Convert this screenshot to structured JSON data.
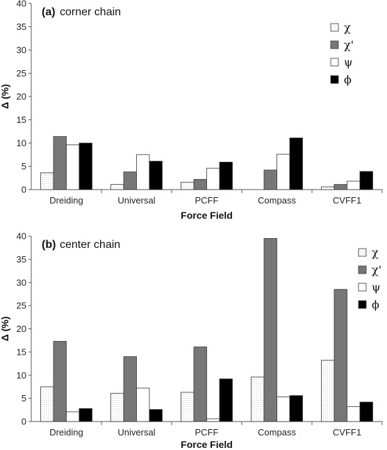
{
  "chart_data": [
    {
      "type": "bar",
      "panel_tag": "(a)",
      "title": "corner chain",
      "xlabel": "Force Field",
      "ylabel": "Δ (%)",
      "categories": [
        "Dreiding",
        "Universal",
        "PCFF",
        "Compass",
        "CVFF1"
      ],
      "ylim": [
        0,
        40
      ],
      "yticks": [
        0,
        5,
        10,
        15,
        20,
        25,
        30,
        35,
        40
      ],
      "grid": false,
      "legend_position": "top-right",
      "series": [
        {
          "name": "χ",
          "values": [
            3.6,
            1.1,
            1.6,
            0,
            0.6
          ],
          "fill": "#ffffff",
          "pattern": "dotted"
        },
        {
          "name": "χ'",
          "values": [
            11.4,
            3.8,
            2.2,
            4.2,
            1.1
          ],
          "fill": "#777777"
        },
        {
          "name": "ψ",
          "values": [
            9.6,
            7.5,
            4.6,
            7.6,
            1.8
          ],
          "fill": "#ffffff"
        },
        {
          "name": "ϕ",
          "values": [
            10.0,
            6.1,
            5.9,
            11.1,
            3.9
          ],
          "fill": "#000000"
        }
      ]
    },
    {
      "type": "bar",
      "panel_tag": "(b)",
      "title": "center chain",
      "xlabel": "Force Field",
      "ylabel": "Δ (%)",
      "categories": [
        "Dreiding",
        "Universal",
        "PCFF",
        "Compass",
        "CVFF1"
      ],
      "ylim": [
        0,
        40
      ],
      "yticks": [
        0,
        5,
        10,
        15,
        20,
        25,
        30,
        35,
        40
      ],
      "grid": false,
      "legend_position": "top-right",
      "series": [
        {
          "name": "χ",
          "values": [
            7.5,
            6.1,
            6.3,
            9.6,
            13.2
          ],
          "fill": "#ffffff",
          "pattern": "dotted"
        },
        {
          "name": "χ'",
          "values": [
            17.3,
            14.0,
            16.1,
            39.5,
            28.5
          ],
          "fill": "#777777"
        },
        {
          "name": "ψ",
          "values": [
            2.1,
            7.2,
            0.6,
            5.3,
            3.2
          ],
          "fill": "#ffffff"
        },
        {
          "name": "ϕ",
          "values": [
            2.8,
            2.6,
            9.2,
            5.6,
            4.2
          ],
          "fill": "#000000"
        }
      ]
    }
  ]
}
